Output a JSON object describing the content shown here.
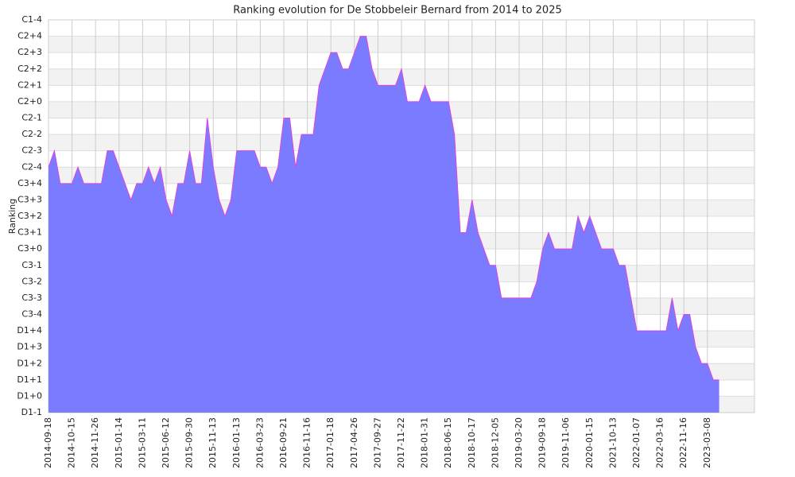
{
  "chart_data": {
    "type": "area",
    "title": "Ranking evolution for De Stobbeleir Bernard from 2014 to 2025",
    "y_label": "Ranking",
    "categories": [
      "2014-09-18",
      null,
      null,
      null,
      "2014-10-15",
      null,
      null,
      null,
      "2014-11-26",
      null,
      null,
      null,
      "2015-01-14",
      null,
      null,
      null,
      "2015-03-11",
      null,
      null,
      null,
      "2015-06-12",
      null,
      null,
      null,
      "2015-09-30",
      null,
      null,
      null,
      "2015-11-13",
      null,
      null,
      null,
      "2016-01-13",
      null,
      null,
      null,
      "2016-03-23",
      null,
      null,
      null,
      "2016-09-21",
      null,
      null,
      null,
      "2016-11-16",
      null,
      null,
      null,
      "2017-01-18",
      null,
      null,
      null,
      "2017-04-26",
      null,
      null,
      null,
      "2017-09-27",
      null,
      null,
      null,
      "2017-11-22",
      null,
      null,
      null,
      "2018-01-31",
      null,
      null,
      null,
      "2018-06-15",
      null,
      null,
      null,
      "2018-10-17",
      null,
      null,
      null,
      "2018-12-05",
      null,
      null,
      null,
      "2019-03-20",
      null,
      null,
      null,
      "2019-09-18",
      null,
      null,
      null,
      "2019-11-06",
      null,
      null,
      null,
      "2020-01-15",
      null,
      null,
      null,
      "2021-10-13",
      null,
      null,
      null,
      "2022-01-07",
      null,
      null,
      null,
      "2022-03-16",
      null,
      null,
      null,
      "2022-11-16",
      null,
      null,
      null,
      "2023-03-08",
      null,
      null,
      null,
      null,
      null,
      null,
      null,
      null
    ],
    "values": [
      15,
      16,
      14,
      14,
      14,
      15,
      14,
      14,
      14,
      14,
      16,
      16,
      15,
      14,
      13,
      14,
      14,
      15,
      14,
      15,
      13,
      12,
      14,
      14,
      16,
      14,
      14,
      18,
      15,
      13,
      12,
      13,
      16,
      16,
      16,
      16,
      15,
      15,
      14,
      15,
      18,
      18,
      15,
      17,
      17,
      17,
      20,
      21,
      22,
      22,
      21,
      21,
      22,
      23,
      23,
      21,
      20,
      20,
      20,
      20,
      21,
      19,
      19,
      19,
      20,
      19,
      19,
      19,
      19,
      17,
      11,
      11,
      13,
      11,
      10,
      9,
      9,
      7,
      7,
      7,
      7,
      7,
      7,
      8,
      10,
      11,
      10,
      10,
      10,
      10,
      12,
      11,
      12,
      11,
      10,
      10,
      10,
      9,
      9,
      7,
      5,
      5,
      5,
      5,
      5,
      5,
      7,
      5,
      6,
      6,
      4,
      3,
      3,
      2,
      2,
      null,
      null,
      null,
      null,
      null,
      null
    ],
    "color": "#7b7bff",
    "line_color": "#dd44dd",
    "ylim": [
      0,
      24
    ],
    "yticks": [
      {
        "value": 0,
        "label": "D1-1"
      },
      {
        "value": 1,
        "label": "D1+0"
      },
      {
        "value": 2,
        "label": "D1+1"
      },
      {
        "value": 3,
        "label": "D1+2"
      },
      {
        "value": 4,
        "label": "D1+3"
      },
      {
        "value": 5,
        "label": "D1+4"
      },
      {
        "value": 6,
        "label": "C3-4"
      },
      {
        "value": 7,
        "label": "C3-3"
      },
      {
        "value": 8,
        "label": "C3-2"
      },
      {
        "value": 9,
        "label": "C3-1"
      },
      {
        "value": 10,
        "label": "C3+0"
      },
      {
        "value": 11,
        "label": "C3+1"
      },
      {
        "value": 12,
        "label": "C3+2"
      },
      {
        "value": 13,
        "label": "C3+3"
      },
      {
        "value": 14,
        "label": "C3+4"
      },
      {
        "value": 15,
        "label": "C2-4"
      },
      {
        "value": 16,
        "label": "C2-3"
      },
      {
        "value": 17,
        "label": "C2-2"
      },
      {
        "value": 18,
        "label": "C2-1"
      },
      {
        "value": 19,
        "label": "C2+0"
      },
      {
        "value": 20,
        "label": "C2+1"
      },
      {
        "value": 21,
        "label": "C2+2"
      },
      {
        "value": 22,
        "label": "C2+3"
      },
      {
        "value": 23,
        "label": "C2+4"
      },
      {
        "value": 24,
        "label": "C1-4"
      }
    ],
    "grid": true
  }
}
